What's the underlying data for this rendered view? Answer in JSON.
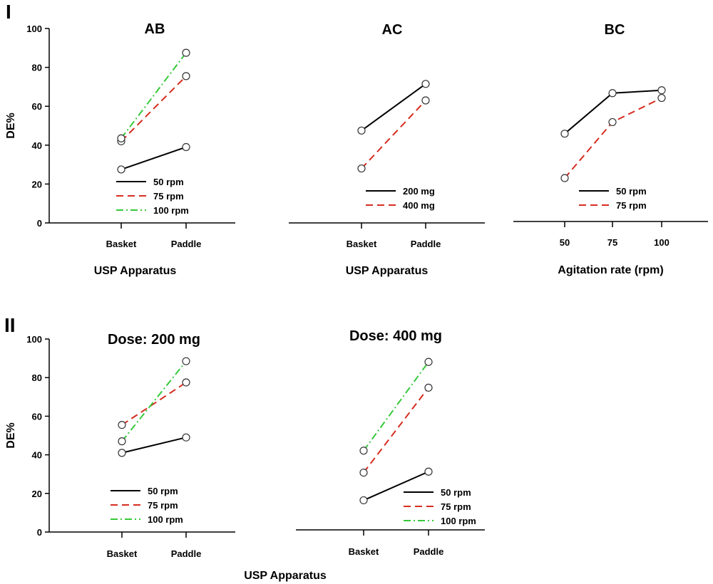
{
  "figure": {
    "panel_labels": [
      "I",
      "II"
    ],
    "colors": {
      "50 rpm": "#000000",
      "75 rpm": "#d62d20",
      "100 rpm": "#36c93a",
      "200 mg": "#000000",
      "400 mg": "#d62d20"
    }
  },
  "chart_data": [
    {
      "type": "line",
      "panel": "I",
      "title": "AB",
      "xlabel": "USP Apparatus",
      "ylabel": "DE%",
      "categories": [
        "Basket",
        "Paddle"
      ],
      "ylim": [
        0,
        100
      ],
      "yticks": [
        0,
        20,
        40,
        60,
        80,
        100
      ],
      "legend_position": "bottom-left",
      "series": [
        {
          "name": "50 rpm",
          "values": [
            27.5,
            39
          ],
          "color": "#000000",
          "dash": "solid"
        },
        {
          "name": "75 rpm",
          "values": [
            42,
            75.5
          ],
          "color": "#d62d20",
          "dash": "dashed"
        },
        {
          "name": "100 rpm",
          "values": [
            43.5,
            87.5
          ],
          "color": "#36c93a",
          "dash": "dashdot"
        }
      ]
    },
    {
      "type": "line",
      "panel": "I",
      "title": "AC",
      "xlabel": "USP Apparatus",
      "ylabel": "",
      "categories": [
        "Basket",
        "Paddle"
      ],
      "ylim": [
        0,
        100
      ],
      "yticks": [],
      "legend_position": "bottom-left",
      "series": [
        {
          "name": "200 mg",
          "values": [
            47.5,
            71.5
          ],
          "color": "#000000",
          "dash": "solid"
        },
        {
          "name": "400 mg",
          "values": [
            28,
            63
          ],
          "color": "#d62d20",
          "dash": "dashed"
        }
      ]
    },
    {
      "type": "line",
      "panel": "I",
      "title": "BC",
      "xlabel": "Agitation rate (rpm)",
      "ylabel": "",
      "categories": [
        "50",
        "75",
        "100"
      ],
      "ylim": [
        0,
        100
      ],
      "yticks": [],
      "legend_position": "bottom-right",
      "series": [
        {
          "name": "50 rpm",
          "values": [
            45.5,
            66.5,
            68
          ],
          "color": "#000000",
          "dash": "solid"
        },
        {
          "name": "75 rpm",
          "values": [
            22.5,
            51.5,
            64
          ],
          "color": "#d62d20",
          "dash": "dashed"
        }
      ]
    },
    {
      "type": "line",
      "panel": "II",
      "title": "Dose: 200 mg",
      "xlabel": "USP Apparatus",
      "ylabel": "DE%",
      "categories": [
        "Basket",
        "Paddle"
      ],
      "ylim": [
        0,
        100
      ],
      "yticks": [
        0,
        20,
        40,
        60,
        80,
        100
      ],
      "legend_position": "bottom-left",
      "series": [
        {
          "name": "50 rpm",
          "values": [
            41,
            49
          ],
          "color": "#000000",
          "dash": "solid"
        },
        {
          "name": "75 rpm",
          "values": [
            55.5,
            77.5
          ],
          "color": "#d62d20",
          "dash": "dashed"
        },
        {
          "name": "100 rpm",
          "values": [
            47,
            88.5
          ],
          "color": "#36c93a",
          "dash": "dashdot"
        }
      ]
    },
    {
      "type": "line",
      "panel": "II",
      "title": "Dose: 400 mg",
      "xlabel": "",
      "ylabel": "",
      "categories": [
        "Basket",
        "Paddle"
      ],
      "ylim": [
        0,
        100
      ],
      "yticks": [],
      "legend_position": "bottom-right",
      "series": [
        {
          "name": "50 rpm",
          "values": [
            15.5,
            30.5
          ],
          "color": "#000000",
          "dash": "solid"
        },
        {
          "name": "75 rpm",
          "values": [
            30,
            74.5
          ],
          "color": "#d62d20",
          "dash": "dashed"
        },
        {
          "name": "100 rpm",
          "values": [
            41.5,
            88
          ],
          "color": "#36c93a",
          "dash": "dashdot"
        }
      ]
    }
  ]
}
